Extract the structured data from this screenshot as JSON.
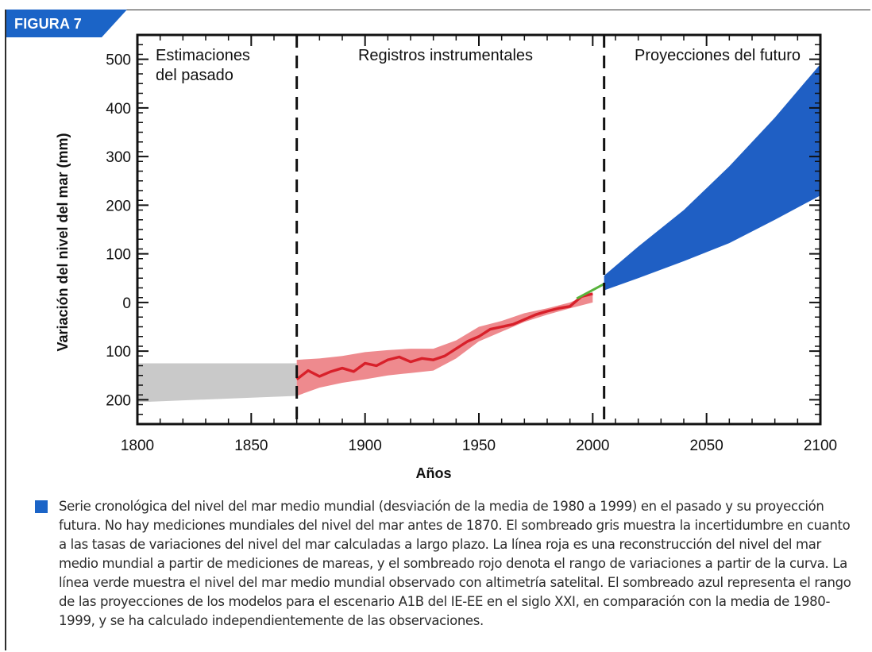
{
  "figure_label": "FIGURA 7",
  "colors": {
    "accent": "#1b64c7",
    "past": "#c9c9c9",
    "instrumental_line": "#d8202a",
    "instrumental_band": "#ee8a8e",
    "satellite": "#58b33b",
    "projection": "#1f5fc4"
  },
  "chart_data": {
    "type": "area",
    "title": "",
    "xlabel": "Años",
    "ylabel": "Variación del nivel del mar (mm)",
    "xlim": [
      1800,
      2100
    ],
    "ylim": [
      -250,
      550
    ],
    "x_ticks": [
      1800,
      1850,
      1900,
      1950,
      2000,
      2050,
      2100
    ],
    "y_ticks": [
      500,
      400,
      300,
      200,
      100,
      0,
      -100,
      -200
    ],
    "y_tick_labels": [
      "500",
      "400",
      "300",
      "200",
      "100",
      "0",
      "100",
      "200"
    ],
    "period_dividers": [
      1870,
      2005
    ],
    "period_labels": [
      "Estimaciones\ndel pasado",
      "Registros instrumentales",
      "Proyecciones del futuro"
    ],
    "series": [
      {
        "kind": "band",
        "x": [
          1800,
          1870
        ],
        "lower": [
          -205,
          -192
        ],
        "upper": [
          -125,
          -125
        ]
      },
      {
        "kind": "band",
        "x": [
          1870,
          1880,
          1890,
          1900,
          1910,
          1920,
          1930,
          1940,
          1950,
          1960,
          1970,
          1980,
          1990,
          2000
        ],
        "lower": [
          -192,
          -175,
          -165,
          -158,
          -150,
          -145,
          -140,
          -115,
          -80,
          -60,
          -40,
          -25,
          -12,
          0
        ],
        "upper": [
          -118,
          -115,
          -110,
          -102,
          -98,
          -95,
          -95,
          -78,
          -50,
          -38,
          -22,
          -12,
          0,
          20
        ]
      },
      {
        "kind": "line",
        "x": [
          1870,
          1875,
          1880,
          1885,
          1890,
          1895,
          1900,
          1905,
          1910,
          1915,
          1920,
          1925,
          1930,
          1935,
          1940,
          1945,
          1950,
          1955,
          1960,
          1965,
          1970,
          1975,
          1980,
          1985,
          1990,
          1995,
          2000
        ],
        "values": [
          -158,
          -140,
          -152,
          -142,
          -135,
          -142,
          -125,
          -130,
          -118,
          -112,
          -122,
          -115,
          -118,
          -110,
          -95,
          -80,
          -70,
          -55,
          -50,
          -45,
          -35,
          -25,
          -18,
          -12,
          -8,
          12,
          18
        ]
      },
      {
        "kind": "line",
        "x": [
          1993,
          2005
        ],
        "values": [
          8,
          38
        ]
      },
      {
        "kind": "band",
        "x": [
          2005,
          2020,
          2040,
          2060,
          2080,
          2100
        ],
        "lower": [
          25,
          50,
          85,
          122,
          170,
          220
        ],
        "upper": [
          55,
          115,
          190,
          280,
          380,
          490
        ]
      }
    ]
  },
  "caption": "Serie cronológica del nivel del mar medio mundial (desviación de la media de 1980 a 1999) en el pasado y su proyección futura. No hay mediciones mundiales del nivel del mar antes de 1870. El sombreado gris muestra la  incertidumbre en cuanto a las tasas de variaciones del nivel del mar calculadas a largo plazo. La línea roja es una reconstrucción del nivel del mar medio mundial a partir de mediciones de mareas, y el sombreado rojo denota el rango de variaciones a partir de la curva. La línea verde muestra el nivel del mar medio mundial observado con altimetría satelital. El sombreado azul representa el rango de las proyecciones de los modelos para el escenario A1B del IE-EE en el siglo XXI, en comparación con la media de 1980-1999, y se ha calculado independientemente de las observaciones."
}
